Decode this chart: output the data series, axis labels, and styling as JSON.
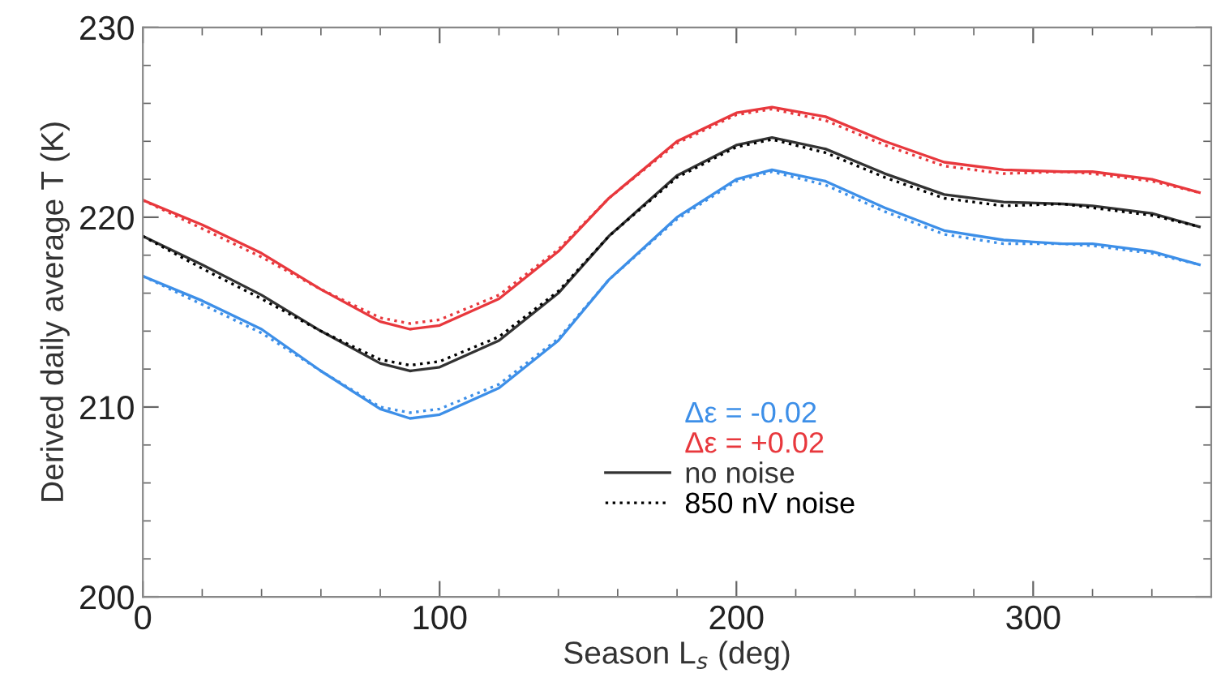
{
  "chart_data": {
    "type": "line",
    "xlabel": "Season L$_{s}$ (deg)",
    "ylabel": "Derived daily average T (K)",
    "x": [
      0,
      20,
      40,
      60,
      80,
      90,
      100,
      120,
      140,
      157,
      180,
      200,
      212,
      230,
      250,
      270,
      290,
      310,
      320,
      340,
      356
    ],
    "xlim": [
      0,
      360
    ],
    "xticks": [
      0,
      100,
      200,
      300
    ],
    "ylim": [
      200,
      230
    ],
    "yticks": [
      200,
      210,
      220,
      230
    ],
    "grid": false,
    "legend": "center",
    "marker": "none",
    "series": [
      {
        "name": "Δε = -0.02",
        "color": "#3d8fe8",
        "line_style": "solid",
        "values": [
          216.9,
          215.6,
          214.1,
          211.9,
          209.9,
          209.4,
          209.6,
          211.0,
          213.5,
          216.7,
          220.0,
          222.0,
          222.5,
          221.9,
          220.5,
          219.3,
          218.8,
          218.6,
          218.6,
          218.2,
          217.5
        ]
      },
      {
        "name": "Δε = +0.02",
        "color": "#e8383d",
        "line_style": "solid",
        "values": [
          220.9,
          219.6,
          218.1,
          216.2,
          214.5,
          214.1,
          214.3,
          215.7,
          218.2,
          221.0,
          224.0,
          225.5,
          225.8,
          225.3,
          224.0,
          222.9,
          222.5,
          222.4,
          222.4,
          222.0,
          221.3
        ]
      },
      {
        "name": "no noise",
        "color": "#333333",
        "line_style": "solid",
        "values": [
          219.0,
          217.5,
          215.9,
          214.0,
          212.3,
          211.9,
          212.1,
          213.5,
          216.0,
          219.0,
          222.2,
          223.8,
          224.2,
          223.6,
          222.3,
          221.2,
          220.8,
          220.7,
          220.6,
          220.2,
          219.5
        ]
      },
      {
        "name": "850 nV noise",
        "color": "#000000",
        "line_style": "dotted",
        "values": [
          219.0,
          217.3,
          215.7,
          214.0,
          212.5,
          212.2,
          212.4,
          213.7,
          216.1,
          219.0,
          222.1,
          223.7,
          224.1,
          223.4,
          222.1,
          221.0,
          220.6,
          220.7,
          220.5,
          220.1,
          219.5
        ]
      },
      {
        "color": "#3d8fe8",
        "line_style": "dotted",
        "values": [
          216.9,
          215.4,
          213.9,
          211.9,
          210.0,
          209.7,
          209.9,
          211.2,
          213.6,
          216.7,
          219.9,
          221.9,
          222.4,
          221.7,
          220.3,
          219.1,
          218.6,
          218.6,
          218.5,
          218.1,
          217.5
        ]
      },
      {
        "color": "#e8383d",
        "line_style": "dotted",
        "values": [
          220.9,
          219.4,
          217.9,
          216.2,
          214.7,
          214.4,
          214.6,
          215.9,
          218.3,
          221.0,
          223.9,
          225.4,
          225.7,
          225.1,
          223.8,
          222.7,
          222.3,
          222.4,
          222.3,
          221.9,
          221.3
        ]
      }
    ]
  }
}
